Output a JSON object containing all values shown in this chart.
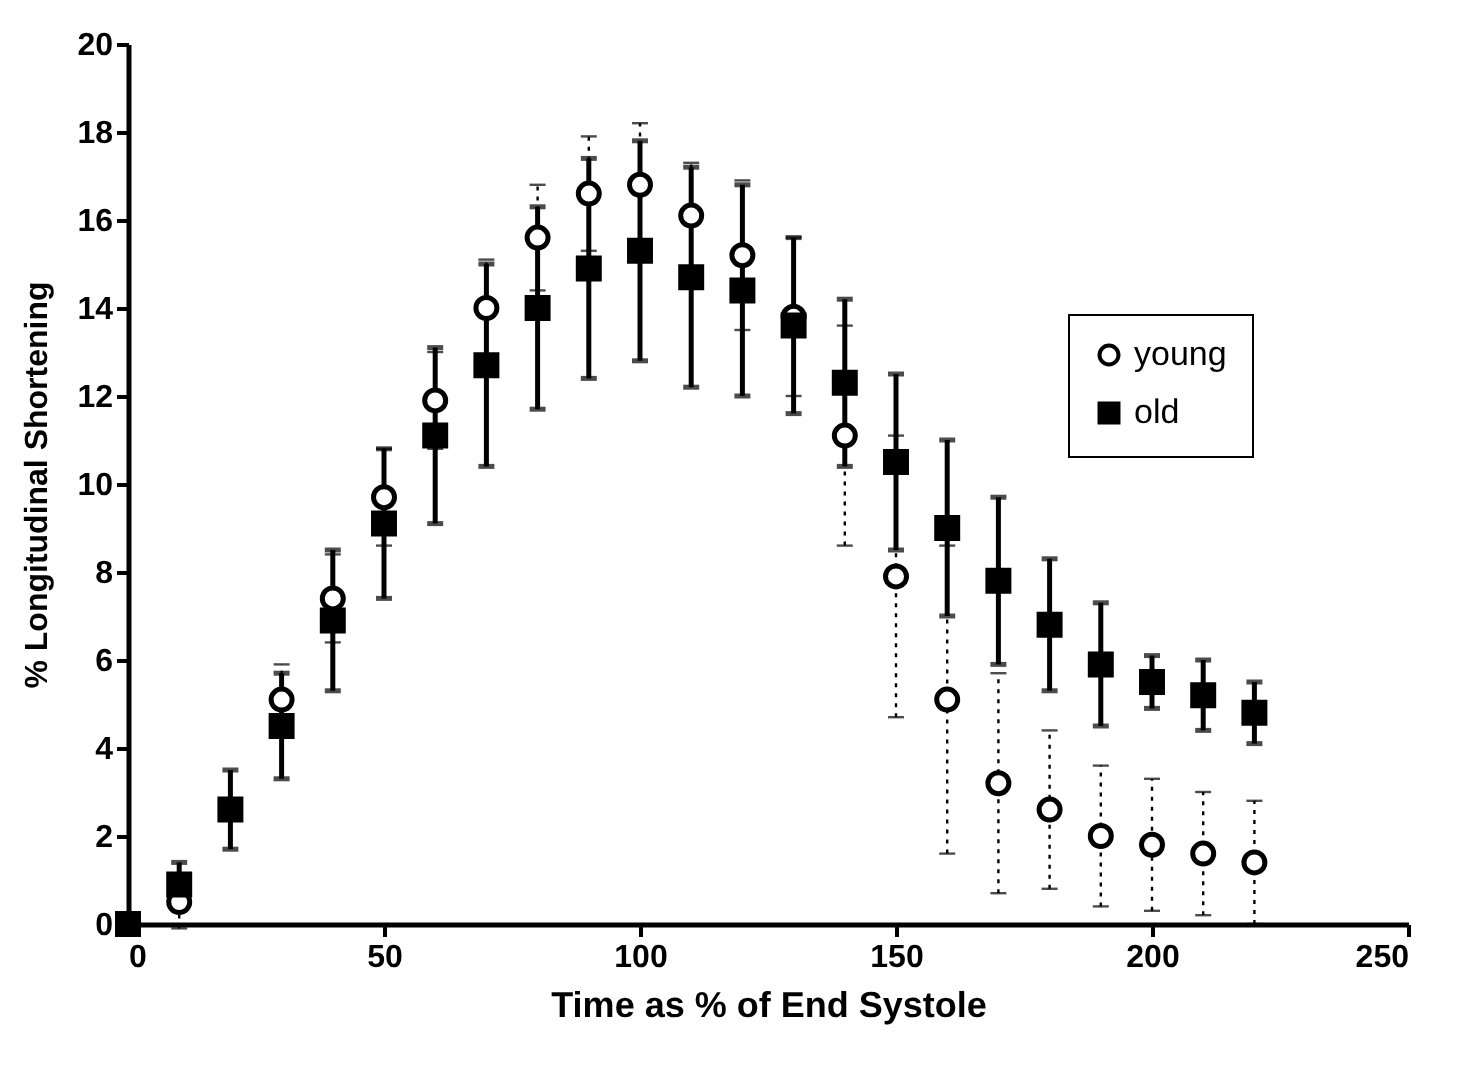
{
  "chart_data": {
    "type": "scatter",
    "xlabel": "Time as % of End Systole",
    "ylabel": "% Longitudinal Shortening",
    "x": [
      0,
      10,
      20,
      30,
      40,
      50,
      60,
      70,
      80,
      90,
      100,
      110,
      120,
      130,
      140,
      150,
      160,
      170,
      180,
      190,
      200,
      210,
      220
    ],
    "series": [
      {
        "name": "young",
        "color": "#000000",
        "marker": "circle",
        "line_style": "dotted",
        "values": [
          null,
          0.5,
          null,
          5.1,
          7.4,
          9.7,
          11.9,
          14.0,
          15.6,
          16.6,
          16.8,
          16.1,
          15.2,
          13.8,
          11.1,
          7.9,
          5.1,
          3.2,
          2.6,
          2.0,
          1.8,
          1.6,
          1.4
        ],
        "errors": [
          null,
          0.6,
          null,
          0.8,
          1.0,
          1.1,
          1.1,
          1.1,
          1.2,
          1.3,
          1.4,
          1.2,
          1.7,
          1.8,
          2.5,
          3.2,
          3.5,
          2.5,
          1.8,
          1.6,
          1.5,
          1.4,
          1.4
        ]
      },
      {
        "name": "old",
        "color": "#000000",
        "marker": "square",
        "line_style": "solid",
        "values": [
          0,
          0.9,
          2.6,
          4.5,
          6.9,
          9.1,
          11.1,
          12.7,
          14.0,
          14.9,
          15.3,
          14.7,
          14.4,
          13.6,
          12.3,
          10.5,
          9.0,
          7.8,
          6.8,
          5.9,
          5.5,
          5.2,
          4.8
        ],
        "errors": [
          null,
          0.5,
          0.9,
          1.2,
          1.6,
          1.7,
          2.0,
          2.3,
          2.3,
          2.5,
          2.5,
          2.5,
          2.4,
          2.0,
          1.9,
          2.0,
          2.0,
          1.9,
          1.5,
          1.4,
          0.6,
          0.8,
          0.7
        ]
      }
    ],
    "xlim": [
      0,
      250
    ],
    "xticks": [
      0,
      50,
      100,
      150,
      200,
      250
    ],
    "ylim": [
      0,
      20
    ],
    "yticks": [
      0,
      2,
      4,
      6,
      8,
      10,
      12,
      14,
      16,
      18,
      20
    ],
    "grid": false,
    "legend": "top right"
  }
}
